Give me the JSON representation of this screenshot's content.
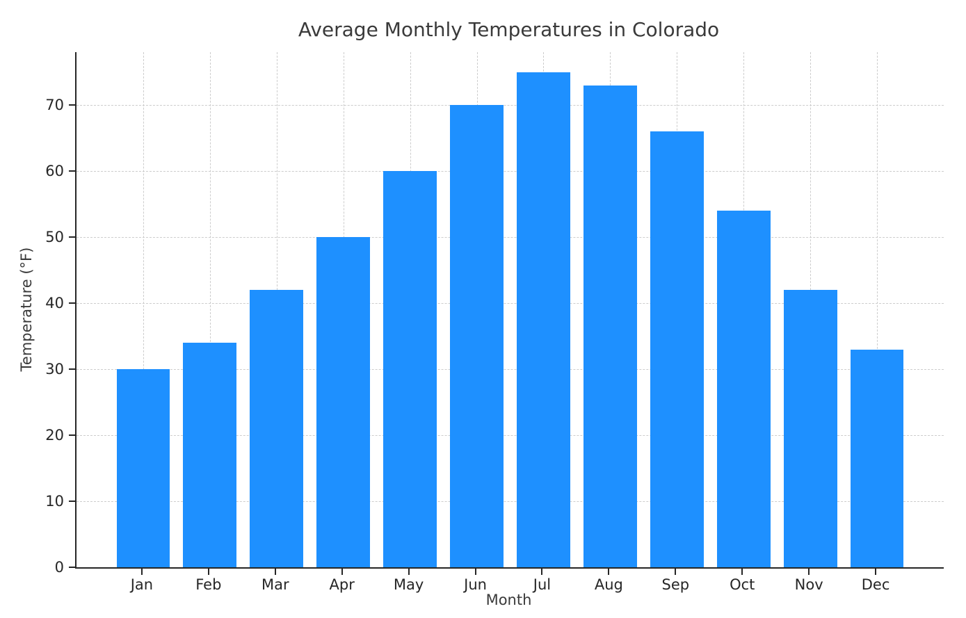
{
  "chart_data": {
    "type": "bar",
    "title": "Average Monthly Temperatures in Colorado",
    "xlabel": "Month",
    "ylabel": "Temperature (°F)",
    "categories": [
      "Jan",
      "Feb",
      "Mar",
      "Apr",
      "May",
      "Jun",
      "Jul",
      "Aug",
      "Sep",
      "Oct",
      "Nov",
      "Dec"
    ],
    "values": [
      30,
      34,
      42,
      50,
      60,
      70,
      75,
      73,
      66,
      54,
      42,
      33
    ],
    "ylim": [
      0,
      78
    ],
    "yticks": [
      0,
      10,
      20,
      30,
      40,
      50,
      60,
      70
    ],
    "bar_color": "#1E90FF",
    "grid": "dashed",
    "grid_color": "#cccccc",
    "legend": "none",
    "background": "#ffffff"
  }
}
